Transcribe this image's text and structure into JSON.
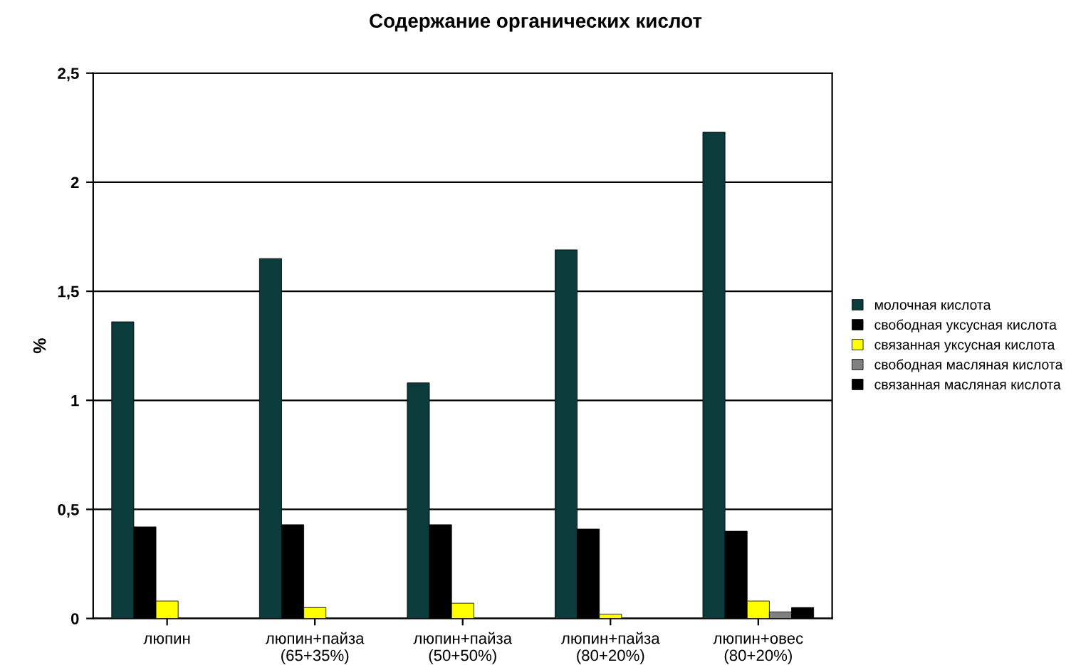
{
  "chart_data": {
    "type": "bar",
    "title": "Содержание органических кислот",
    "ylabel": "%",
    "categories": [
      "люпин",
      "люпин+пайза\n(65+35%)",
      "люпин+пайза\n(50+50%)",
      "люпин+пайза\n(80+20%)",
      "люпин+овес\n(80+20%)"
    ],
    "series": [
      {
        "name": "молочная кислота",
        "color": "#0b3b3b",
        "values": [
          1.36,
          1.65,
          1.08,
          1.69,
          2.23
        ]
      },
      {
        "name": "свободная уксусная кислота",
        "color": "#000000",
        "values": [
          0.42,
          0.43,
          0.43,
          0.41,
          0.4
        ]
      },
      {
        "name": "связанная уксусная кислота",
        "color": "#ffff00",
        "values": [
          0.08,
          0.05,
          0.07,
          0.02,
          0.08
        ]
      },
      {
        "name": "свободная масляная кислота",
        "color": "#808080",
        "values": [
          null,
          null,
          null,
          null,
          0.03
        ]
      },
      {
        "name": "связанная масляная кислота",
        "color": "#000000",
        "values": [
          null,
          null,
          null,
          null,
          0.05
        ]
      }
    ],
    "ylim": [
      0,
      2.5
    ],
    "yticks": [
      0,
      {
        "value": 0.5,
        "label": "0,5"
      },
      1,
      {
        "value": 1.5,
        "label": "1,5"
      },
      2,
      {
        "value": 2.5,
        "label": "2,5"
      }
    ],
    "grid": "y",
    "legend": "right"
  }
}
